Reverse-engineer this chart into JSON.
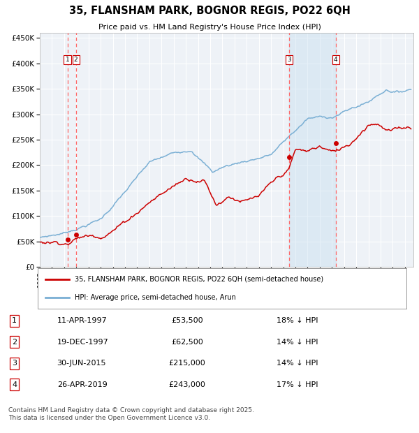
{
  "title_line1": "35, FLANSHAM PARK, BOGNOR REGIS, PO22 6QH",
  "title_line2": "Price paid vs. HM Land Registry's House Price Index (HPI)",
  "legend_red": "35, FLANSHAM PARK, BOGNOR REGIS, PO22 6QH (semi-detached house)",
  "legend_blue": "HPI: Average price, semi-detached house, Arun",
  "footer": "Contains HM Land Registry data © Crown copyright and database right 2025.\nThis data is licensed under the Open Government Licence v3.0.",
  "transactions": [
    {
      "id": 1,
      "date_str": "11-APR-1997",
      "price": 53500,
      "pct": "18%",
      "year_x": 1997.27
    },
    {
      "id": 2,
      "date_str": "19-DEC-1997",
      "price": 62500,
      "pct": "14%",
      "year_x": 1997.96
    },
    {
      "id": 3,
      "date_str": "30-JUN-2015",
      "price": 215000,
      "pct": "14%",
      "year_x": 2015.49
    },
    {
      "id": 4,
      "date_str": "26-APR-2019",
      "price": 243000,
      "pct": "17%",
      "year_x": 2019.32
    }
  ],
  "shaded_region": [
    2015.49,
    2019.32
  ],
  "bg_color": "#ffffff",
  "plot_bg_color": "#eef2f7",
  "grid_color": "#ffffff",
  "red_color": "#cc0000",
  "blue_color": "#7aafd4",
  "dashed_color": "#ff6666",
  "shade_color": "#c8dff0",
  "marker_color": "#cc0000",
  "ylim": [
    0,
    460000
  ],
  "yticks": [
    0,
    50000,
    100000,
    150000,
    200000,
    250000,
    300000,
    350000,
    400000,
    450000
  ],
  "xlim": [
    1995.0,
    2025.7
  ]
}
